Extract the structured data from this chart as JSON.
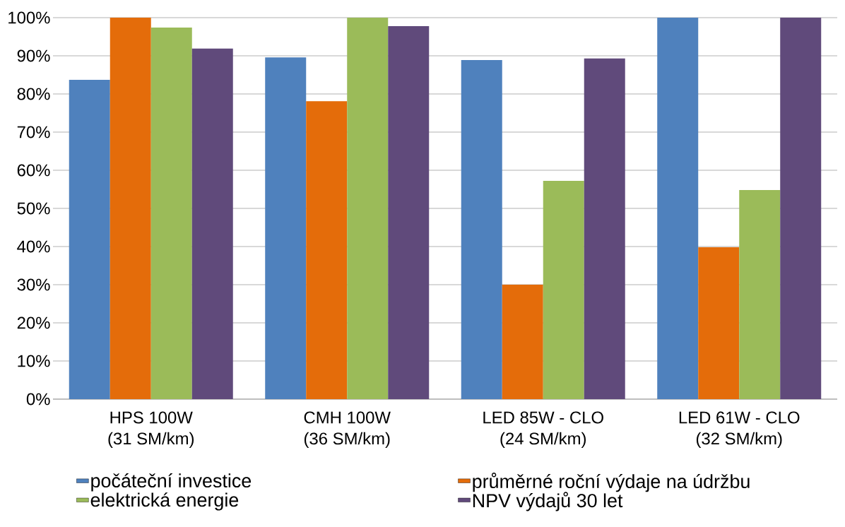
{
  "chart_data": {
    "type": "bar",
    "categories": [
      "HPS 100W (31 SM/km)",
      "CMH 100W (36 SM/km)",
      "LED 85W - CLO (24 SM/km)",
      "LED 61W - CLO (32 SM/km)"
    ],
    "series": [
      {
        "name": "počáteční investice",
        "color": "#4f81bd",
        "values": [
          83.7,
          89.6,
          88.9,
          100
        ]
      },
      {
        "name": "průměrné roční výdaje na údržbu",
        "color": "#e46c0a",
        "values": [
          100,
          78.1,
          30.0,
          39.8
        ]
      },
      {
        "name": "elektrická energie",
        "color": "#9bbb59",
        "values": [
          97.4,
          100,
          57.2,
          54.8
        ]
      },
      {
        "name": "NPV výdajů 30 let",
        "color": "#604a7b",
        "values": [
          91.9,
          97.8,
          89.3,
          100
        ]
      }
    ],
    "ylim": [
      0,
      100
    ],
    "yticks": [
      {
        "value": 0,
        "label": "0%"
      },
      {
        "value": 10,
        "label": "10%"
      },
      {
        "value": 20,
        "label": "20%"
      },
      {
        "value": 30,
        "label": "30%"
      },
      {
        "value": 40,
        "label": "40%"
      },
      {
        "value": 50,
        "label": "50%"
      },
      {
        "value": 60,
        "label": "60%"
      },
      {
        "value": 70,
        "label": "70%"
      },
      {
        "value": 80,
        "label": "80%"
      },
      {
        "value": 90,
        "label": "90%"
      },
      {
        "value": 100,
        "label": "100%"
      }
    ],
    "grid": "y",
    "legend": "bottom"
  }
}
